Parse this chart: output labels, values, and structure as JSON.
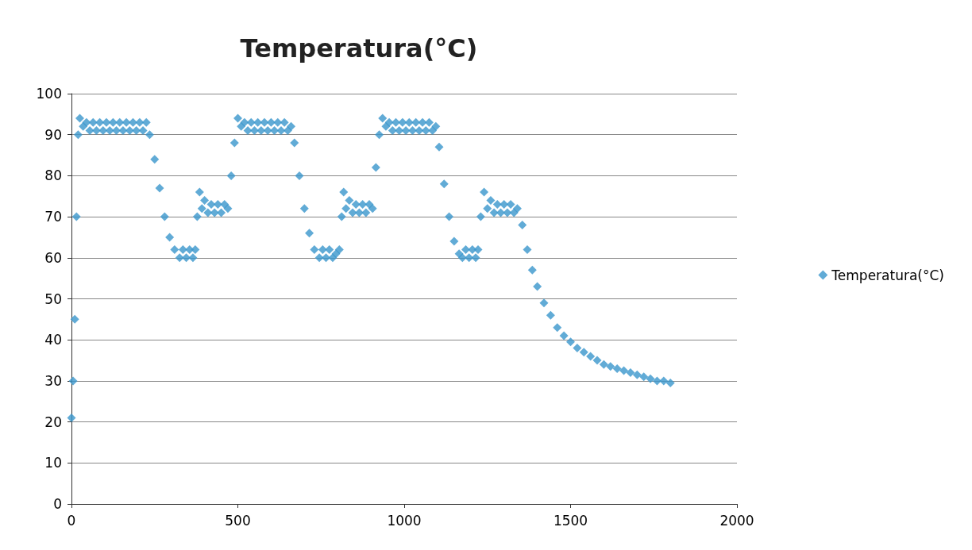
{
  "chart_data": {
    "type": "scatter",
    "title": "Temperatura(°C)",
    "x": [
      0,
      5,
      10,
      15,
      20,
      25,
      35,
      45,
      55,
      65,
      75,
      85,
      95,
      105,
      115,
      125,
      135,
      145,
      155,
      165,
      175,
      185,
      195,
      205,
      215,
      225,
      235,
      250,
      265,
      280,
      295,
      310,
      325,
      335,
      345,
      355,
      365,
      372,
      378,
      385,
      392,
      400,
      410,
      420,
      430,
      440,
      450,
      460,
      470,
      480,
      490,
      500,
      510,
      520,
      530,
      540,
      550,
      560,
      570,
      580,
      590,
      600,
      610,
      620,
      630,
      640,
      650,
      660,
      670,
      685,
      700,
      715,
      730,
      745,
      755,
      765,
      775,
      785,
      795,
      805,
      812,
      818,
      825,
      835,
      845,
      855,
      865,
      875,
      885,
      895,
      905,
      915,
      925,
      935,
      945,
      955,
      965,
      975,
      985,
      995,
      1005,
      1015,
      1025,
      1035,
      1045,
      1055,
      1065,
      1075,
      1085,
      1095,
      1105,
      1120,
      1135,
      1150,
      1165,
      1175,
      1185,
      1195,
      1205,
      1215,
      1222,
      1230,
      1240,
      1250,
      1260,
      1270,
      1280,
      1290,
      1300,
      1310,
      1320,
      1330,
      1340,
      1355,
      1370,
      1385,
      1400,
      1420,
      1440,
      1460,
      1480,
      1500,
      1520,
      1540,
      1560,
      1580,
      1600,
      1620,
      1640,
      1660,
      1680,
      1700,
      1720,
      1740,
      1760,
      1780,
      1800
    ],
    "series": [
      {
        "name": "Temperatura(°C)",
        "color": "#3a96cc",
        "values": [
          21,
          30,
          45,
          70,
          90,
          94,
          92,
          93,
          91,
          93,
          91,
          93,
          91,
          93,
          91,
          93,
          91,
          93,
          91,
          93,
          91,
          93,
          91,
          93,
          91,
          93,
          90,
          84,
          77,
          70,
          65,
          62,
          60,
          62,
          60,
          62,
          60,
          62,
          70,
          76,
          72,
          74,
          71,
          73,
          71,
          73,
          71,
          73,
          72,
          80,
          88,
          94,
          92,
          93,
          91,
          93,
          91,
          93,
          91,
          93,
          91,
          93,
          91,
          93,
          91,
          93,
          91,
          92,
          88,
          80,
          72,
          66,
          62,
          60,
          62,
          60,
          62,
          60,
          61,
          62,
          70,
          76,
          72,
          74,
          71,
          73,
          71,
          73,
          71,
          73,
          72,
          82,
          90,
          94,
          92,
          93,
          91,
          93,
          91,
          93,
          91,
          93,
          91,
          93,
          91,
          93,
          91,
          93,
          91,
          92,
          87,
          78,
          70,
          64,
          61,
          60,
          62,
          60,
          62,
          60,
          62,
          70,
          76,
          72,
          74,
          71,
          73,
          71,
          73,
          71,
          73,
          71,
          72,
          68,
          62,
          57,
          53,
          49,
          46,
          43,
          41,
          39.5,
          38,
          37,
          36,
          35,
          34,
          33.5,
          33,
          32.5,
          32,
          31.5,
          31,
          30.5,
          30,
          30,
          29.5
        ]
      }
    ],
    "xlim": [
      0,
      2000
    ],
    "xticks": [
      0,
      500,
      1000,
      1500,
      2000
    ],
    "ylim": [
      0,
      100
    ],
    "yticks": [
      0,
      10,
      20,
      30,
      40,
      50,
      60,
      70,
      80,
      90,
      100
    ],
    "grid": "y",
    "legend": "right",
    "marker": "diamond"
  }
}
